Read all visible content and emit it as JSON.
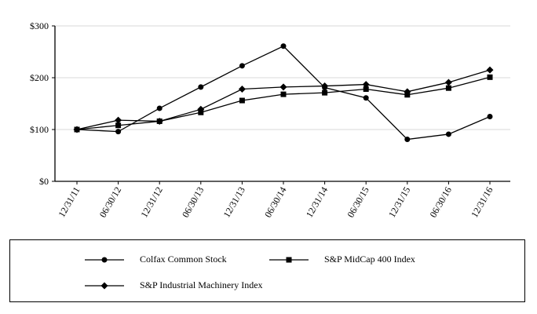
{
  "chart_data": {
    "type": "line",
    "title": "",
    "xlabel": "",
    "ylabel": "",
    "categories": [
      "12/31/11",
      "06/30/12",
      "12/31/12",
      "06/30/13",
      "12/31/13",
      "06/30/14",
      "12/31/14",
      "06/30/15",
      "12/31/15",
      "06/30/16",
      "12/31/16"
    ],
    "ylim": [
      0,
      300
    ],
    "yticks": [
      0,
      100,
      200,
      300
    ],
    "ytick_labels": [
      "$0",
      "$100",
      "$200",
      "$300"
    ],
    "grid": true,
    "legend_position": "bottom",
    "series": [
      {
        "name": "Colfax Common Stock",
        "marker": "circle",
        "values": [
          100,
          96,
          141,
          182,
          223,
          261,
          181,
          161,
          81,
          91,
          125
        ]
      },
      {
        "name": "S&P MidCap 400 Index",
        "marker": "square",
        "values": [
          100,
          108,
          116,
          133,
          156,
          168,
          171,
          178,
          167,
          180,
          201
        ]
      },
      {
        "name": "S&P Industrial Machinery Index",
        "marker": "diamond",
        "values": [
          100,
          118,
          116,
          139,
          178,
          182,
          184,
          187,
          173,
          191,
          215
        ]
      }
    ]
  }
}
